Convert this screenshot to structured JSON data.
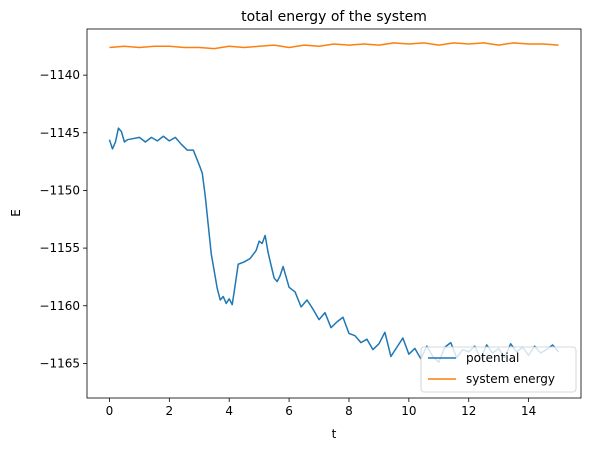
{
  "chart_data": {
    "type": "line",
    "title": "total energy of the system",
    "xlabel": "t",
    "ylabel": "E",
    "xlim": [
      -0.75,
      15.75
    ],
    "ylim": [
      -1168,
      -1136
    ],
    "xticks": [
      0,
      2,
      4,
      6,
      8,
      10,
      12,
      14
    ],
    "xtick_labels": [
      "0",
      "2",
      "4",
      "6",
      "8",
      "10",
      "12",
      "14"
    ],
    "yticks": [
      -1165,
      -1160,
      -1155,
      -1150,
      -1145,
      -1140
    ],
    "ytick_labels": [
      "−1165",
      "−1160",
      "−1155",
      "−1150",
      "−1145",
      "−1140"
    ],
    "grid": false,
    "legend_position": "lower-right",
    "series": [
      {
        "name": "potential",
        "color": "#1f77b4",
        "x": [
          0,
          0.1,
          0.2,
          0.3,
          0.4,
          0.5,
          0.6,
          0.8,
          1.0,
          1.2,
          1.4,
          1.6,
          1.8,
          2.0,
          2.2,
          2.4,
          2.6,
          2.8,
          3.0,
          3.1,
          3.2,
          3.3,
          3.4,
          3.5,
          3.6,
          3.7,
          3.8,
          3.9,
          4.0,
          4.1,
          4.2,
          4.3,
          4.5,
          4.7,
          4.9,
          5.0,
          5.1,
          5.2,
          5.3,
          5.4,
          5.5,
          5.6,
          5.7,
          5.8,
          6.0,
          6.2,
          6.4,
          6.6,
          6.8,
          7.0,
          7.2,
          7.4,
          7.6,
          7.8,
          8.0,
          8.2,
          8.4,
          8.6,
          8.8,
          9.0,
          9.2,
          9.4,
          9.6,
          9.8,
          10.0,
          10.2,
          10.4,
          10.6,
          10.8,
          11.0,
          11.2,
          11.4,
          11.6,
          11.8,
          12.0,
          12.2,
          12.4,
          12.6,
          12.8,
          13.0,
          13.2,
          13.4,
          13.6,
          13.8,
          14.0,
          14.2,
          14.4,
          14.6,
          14.8,
          15.0
        ],
        "y": [
          -1145.6,
          -1146.4,
          -1145.8,
          -1144.6,
          -1144.9,
          -1145.8,
          -1145.6,
          -1145.5,
          -1145.4,
          -1145.8,
          -1145.4,
          -1145.7,
          -1145.3,
          -1145.7,
          -1145.4,
          -1146.0,
          -1146.5,
          -1146.5,
          -1147.8,
          -1148.5,
          -1150.5,
          -1153.0,
          -1155.5,
          -1157.0,
          -1158.5,
          -1159.5,
          -1159.2,
          -1159.8,
          -1159.4,
          -1159.9,
          -1158.2,
          -1156.4,
          -1156.2,
          -1155.9,
          -1155.2,
          -1154.4,
          -1154.6,
          -1153.9,
          -1155.4,
          -1156.5,
          -1157.6,
          -1157.9,
          -1157.4,
          -1156.6,
          -1158.4,
          -1158.8,
          -1160.1,
          -1159.5,
          -1160.3,
          -1161.2,
          -1160.6,
          -1161.9,
          -1161.4,
          -1161.0,
          -1162.4,
          -1162.6,
          -1163.2,
          -1162.9,
          -1163.8,
          -1163.3,
          -1162.3,
          -1164.4,
          -1163.6,
          -1162.8,
          -1164.2,
          -1163.7,
          -1164.6,
          -1163.5,
          -1164.4,
          -1164.9,
          -1163.6,
          -1163.2,
          -1164.5,
          -1163.8,
          -1164.0,
          -1163.5,
          -1164.6,
          -1163.4,
          -1164.1,
          -1163.7,
          -1164.5,
          -1163.3,
          -1164.0,
          -1163.6,
          -1164.3,
          -1163.5,
          -1164.1,
          -1163.8,
          -1163.4,
          -1164.0
        ]
      },
      {
        "name": "system energy",
        "color": "#ff7f0e",
        "x": [
          0,
          0.5,
          1.0,
          1.5,
          2.0,
          2.5,
          3.0,
          3.5,
          4.0,
          4.5,
          5.0,
          5.5,
          6.0,
          6.5,
          7.0,
          7.5,
          8.0,
          8.5,
          9.0,
          9.5,
          10.0,
          10.5,
          11.0,
          11.5,
          12.0,
          12.5,
          13.0,
          13.5,
          14.0,
          14.5,
          15.0
        ],
        "y": [
          -1137.6,
          -1137.5,
          -1137.6,
          -1137.5,
          -1137.5,
          -1137.6,
          -1137.6,
          -1137.7,
          -1137.5,
          -1137.6,
          -1137.5,
          -1137.4,
          -1137.6,
          -1137.4,
          -1137.5,
          -1137.3,
          -1137.4,
          -1137.3,
          -1137.4,
          -1137.2,
          -1137.3,
          -1137.2,
          -1137.4,
          -1137.2,
          -1137.3,
          -1137.2,
          -1137.4,
          -1137.2,
          -1137.3,
          -1137.3,
          -1137.4
        ]
      }
    ]
  }
}
